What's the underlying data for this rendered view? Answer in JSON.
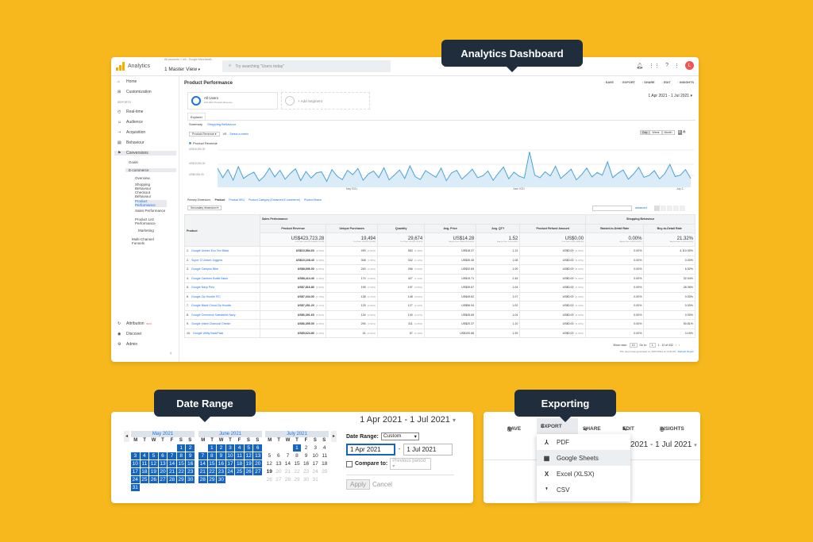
{
  "callouts": {
    "dashboard": "Analytics Dashboard",
    "date_range": "Date Range",
    "exporting": "Exporting"
  },
  "colors": {
    "background": "#f6b81c",
    "callout": "#1f2d3d",
    "link": "#1a73e8",
    "series": "#4ea1d3",
    "selected_day": "#1565c0"
  },
  "header": {
    "brand": "Analytics",
    "account_path": "All accounts > UA - Google Merchandi...",
    "view": "1 Master View",
    "search_placeholder": "Try searching \"Users today\"",
    "avatar": "L"
  },
  "sidebar": {
    "items": [
      {
        "icon": "home-icon",
        "label": "Home"
      },
      {
        "icon": "customization-icon",
        "label": "Customization"
      },
      {
        "label": "REPORTS"
      },
      {
        "icon": "realtime-icon",
        "label": "Real-time"
      },
      {
        "icon": "audience-icon",
        "label": "Audience"
      },
      {
        "icon": "acquisition-icon",
        "label": "Acquisition"
      },
      {
        "icon": "behaviour-icon",
        "label": "Behaviour"
      },
      {
        "icon": "conversions-icon",
        "label": "Conversions"
      }
    ],
    "goals": "Goals",
    "ecommerce": "E-commerce",
    "sub": [
      "Overview",
      "Shopping Behaviour",
      "Checkout Behaviour",
      "Product Performance",
      "Sales Performance",
      "Product List Performance",
      "Marketing",
      "Multi-Channel Funnels"
    ],
    "bottom": [
      "Attribution",
      "Discover",
      "Admin"
    ],
    "beta": "BETA"
  },
  "report": {
    "title": "Product Performance",
    "actions": [
      "SAVE",
      "EXPORT",
      "SHARE",
      "EDIT",
      "INSIGHTS"
    ],
    "segment": {
      "name": "All Users",
      "sub": "100.00% Product Revenue",
      "add": "+ Add Segment"
    },
    "date_range": "1 Apr 2021 - 1 Jul 2021",
    "tab": "Explorer",
    "subtabs": [
      "Summary",
      "Shopping Behaviour"
    ],
    "metric_select": "Product Revenue",
    "vs": "VS",
    "select_metric": "Select a metric",
    "granularity": [
      "Day",
      "Week",
      "Month"
    ],
    "legend": "Product Revenue",
    "y_ticks": [
      "US$16,000.00",
      "US$10,000.00",
      "US$5,000.00"
    ],
    "x_ticks": [
      "May 2021",
      "June 2021",
      "July 2..."
    ],
    "primary_dim_label": "Primary Dimension:",
    "primary_dims": [
      "Product",
      "Product SKU",
      "Product Category (Enhanced E-commerce)",
      "Product Brand"
    ],
    "secondary": "Secondary dimension",
    "advanced": "advanced"
  },
  "chart_data": {
    "type": "line",
    "x_labels": [
      "May 2021",
      "June 2021",
      "July 2..."
    ],
    "series": [
      {
        "name": "Product Revenue",
        "values": [
          5200,
          2600,
          4800,
          1900,
          5600,
          2400,
          3400,
          4100,
          1700,
          3000,
          5200,
          2800,
          4600,
          2200,
          3800,
          5000,
          1800,
          4300,
          2500,
          3900,
          4200,
          1600,
          4800,
          3000,
          2100,
          4600,
          3400,
          5100,
          1900,
          3600,
          4400,
          2600,
          5300,
          2000,
          3300,
          4700,
          2400,
          5800,
          2900,
          2100,
          4500,
          3600,
          2700,
          5200,
          1800,
          3900,
          4600,
          2200,
          3500,
          4900,
          2600,
          3100,
          4400,
          1900,
          3800,
          5500,
          2300,
          4100,
          3000,
          2500,
          9600,
          3300,
          2600,
          4200,
          3100,
          5700,
          2400,
          3600,
          4900,
          2000,
          3400,
          5200,
          2800,
          4000,
          3300,
          6900,
          2600,
          3800,
          4700,
          2200,
          3600,
          5400,
          2700,
          3200,
          4500,
          2300,
          3700,
          6200,
          2900,
          3300,
          4800,
          2400
        ]
      }
    ],
    "y_range": [
      0,
      16000
    ]
  },
  "table": {
    "product_header": "Product",
    "group_sales": "Sales Performance",
    "group_shopping": "Shopping Behaviour",
    "columns": [
      "Product Revenue",
      "Unique Purchases",
      "Quantity",
      "Avg. Price",
      "Avg. QTY",
      "Product Refund Amount",
      "Basket-to-Detail Rate",
      "Buy-to-Detail Rate"
    ],
    "totals": [
      "US$423,723.28",
      "19,494",
      "29,674",
      "US$14.28",
      "1.52",
      "US$0.00",
      "0.00%",
      "21.32%"
    ],
    "totals_sub": [
      "% of Total: 100.00% (US$423,723.28)",
      "% of Total: 100.00% (19,494)",
      "% of Total: 100.00% (29,674)",
      "Avg for View: US$14.28 (0.00%)",
      "Avg for View: 1.52 (0.00%)",
      "% of Total: 0.00% (US$0.00)",
      "Avg for View: 0.00% (0.00%)",
      "Avg for View: 21.32% (0.00%)"
    ],
    "rows": [
      {
        "n": "1.",
        "name": "Google Unisex Eco Tee Black",
        "rev": "US$10,584.60",
        "rp": "(2.50%)",
        "up": "490",
        "upp": "(2.51%)",
        "q": "563",
        "qp": "(1.90%)",
        "ap": "US$18.37",
        "aq": "1.13",
        "ref": "US$0.00",
        "refp": "(0.00%)",
        "bd": "0.00%",
        "bt": "4,110.00%"
      },
      {
        "n": "2.",
        "name": "Super G Unisex Joggers",
        "rev": "US$10,108.40",
        "rp": "(2.39%)",
        "up": "308",
        "upp": "(1.58%)",
        "q": "332",
        "qp": "(1.12%)",
        "ap": "US$30.45",
        "aq": "1.08",
        "ref": "US$0.00",
        "refp": "(0.00%)",
        "bd": "0.00%",
        "bt": "0.00%"
      },
      {
        "n": "3.",
        "name": "Google Campus Bike",
        "rev": "US$8,696.00",
        "rp": "(2.05%)",
        "up": "240",
        "upp": "(1.23%)",
        "q": "266",
        "qp": "(0.90%)",
        "ap": "US$32.69",
        "aq": "1.09",
        "ref": "US$0.00",
        "refp": "(0.00%)",
        "bd": "0.00%",
        "bt": "6.52%"
      },
      {
        "n": "4.",
        "name": "Google Canteen Bottle Black",
        "rev": "US$8,414.40",
        "rp": "(1.99%)",
        "up": "174",
        "upp": "(0.89%)",
        "q": "427",
        "qp": "(1.44%)",
        "ap": "US$19.71",
        "aq": "2.45",
        "ref": "US$0.00",
        "refp": "(0.00%)",
        "bd": "0.00%",
        "bt": "32.04%"
      },
      {
        "n": "5.",
        "name": "Google Navy Polo",
        "rev": "US$7,816.80",
        "rp": "(1.84%)",
        "up": "195",
        "upp": "(1.00%)",
        "q": "197",
        "qp": "(0.66%)",
        "ap": "US$39.67",
        "aq": "1.04",
        "ref": "US$0.00",
        "refp": "(0.00%)",
        "bd": "0.00%",
        "bt": "28.36%"
      },
      {
        "n": "6.",
        "name": "Google Zip Hoodie F/C",
        "rev": "US$7,344.00",
        "rp": "(1.73%)",
        "up": "138",
        "upp": "(0.71%)",
        "q": "148",
        "qp": "(0.50%)",
        "ap": "US$49.62",
        "aq": "1.07",
        "ref": "US$0.00",
        "refp": "(0.00%)",
        "bd": "0.00%",
        "bt": "0.00%"
      },
      {
        "n": "7.",
        "name": "Google Black Cloud Zip Hoodie",
        "rev": "US$7,251.20",
        "rp": "(1.71%)",
        "up": "125",
        "upp": "(0.64%)",
        "q": "127",
        "qp": "(0.43%)",
        "ap": "US$56.94",
        "aq": "1.02",
        "ref": "US$0.00",
        "refp": "(0.00%)",
        "bd": "0.00%",
        "bt": "0.00%"
      },
      {
        "n": "8.",
        "name": "Google Crewneck Sweatshirt Navy",
        "rev": "US$6,391.60",
        "rp": "(1.51%)",
        "up": "134",
        "upp": "(0.69%)",
        "q": "140",
        "qp": "(0.47%)",
        "ap": "US$45.65",
        "aq": "1.04",
        "ref": "US$0.00",
        "refp": "(0.00%)",
        "bd": "0.00%",
        "bt": "0.00%"
      },
      {
        "n": "9.",
        "name": "Google Infant Charcoal Onesie",
        "rev": "US$6,355.00",
        "rp": "(1.50%)",
        "up": "294",
        "upp": "(1.51%)",
        "q": "311",
        "qp": "(1.05%)",
        "ap": "US$20.37",
        "aq": "1.10",
        "ref": "US$0.00",
        "refp": "(0.00%)",
        "bd": "0.00%",
        "bt": "50.81%"
      },
      {
        "n": "10.",
        "name": "Google Utility BackPack",
        "rev": "US$5,624.80",
        "rp": "(1.33%)",
        "up": "41",
        "upp": "(0.21%)",
        "q": "57",
        "qp": "(0.19%)",
        "ap": "US$100.68",
        "aq": "1.39",
        "ref": "US$0.00",
        "refp": "(0.00%)",
        "bd": "0.00%",
        "bt": "3.16%"
      }
    ],
    "show_rows": "Show rows:",
    "rows_count": "10",
    "goto": "Go to:",
    "goto_val": "1",
    "range": "1 - 10 of 432",
    "footer": "This report was generated on 15/07/2021 at 14:34:45 - ",
    "refresh": "Refresh Report"
  },
  "date_picker": {
    "header": "1 Apr 2021 - 1 Jul 2021",
    "weekdays": [
      "M",
      "T",
      "W",
      "T",
      "F",
      "S",
      "S"
    ],
    "months": [
      {
        "name": "May 2021",
        "offset": 5,
        "days": 31,
        "selected_from": 1,
        "selected_to": 31
      },
      {
        "name": "June 2021",
        "offset": 1,
        "days": 30,
        "selected_from": 1,
        "selected_to": 30
      },
      {
        "name": "July 2021",
        "offset": 3,
        "days": 31,
        "selected_from": 1,
        "selected_to": 1,
        "bold_day": 19,
        "disabled_from": 20
      }
    ],
    "label": "Date Range:",
    "mode": "Custom",
    "start": "1 Apr 2021",
    "end": "1 Jul 2021",
    "compare": "Compare to:",
    "compare_val": "Previous period",
    "apply": "Apply",
    "cancel": "Cancel"
  },
  "export": {
    "bar": [
      "SAVE",
      "EXPORT",
      "SHARE",
      "EDIT",
      "INSIGHTS"
    ],
    "date": "2021 - 1 Jul 2021",
    "items": [
      {
        "icon": "pdf-icon",
        "label": "PDF"
      },
      {
        "icon": "sheets-icon",
        "label": "Google Sheets"
      },
      {
        "icon": "excel-icon",
        "label": "Excel (XLSX)"
      },
      {
        "icon": "csv-icon",
        "label": "CSV"
      }
    ]
  }
}
